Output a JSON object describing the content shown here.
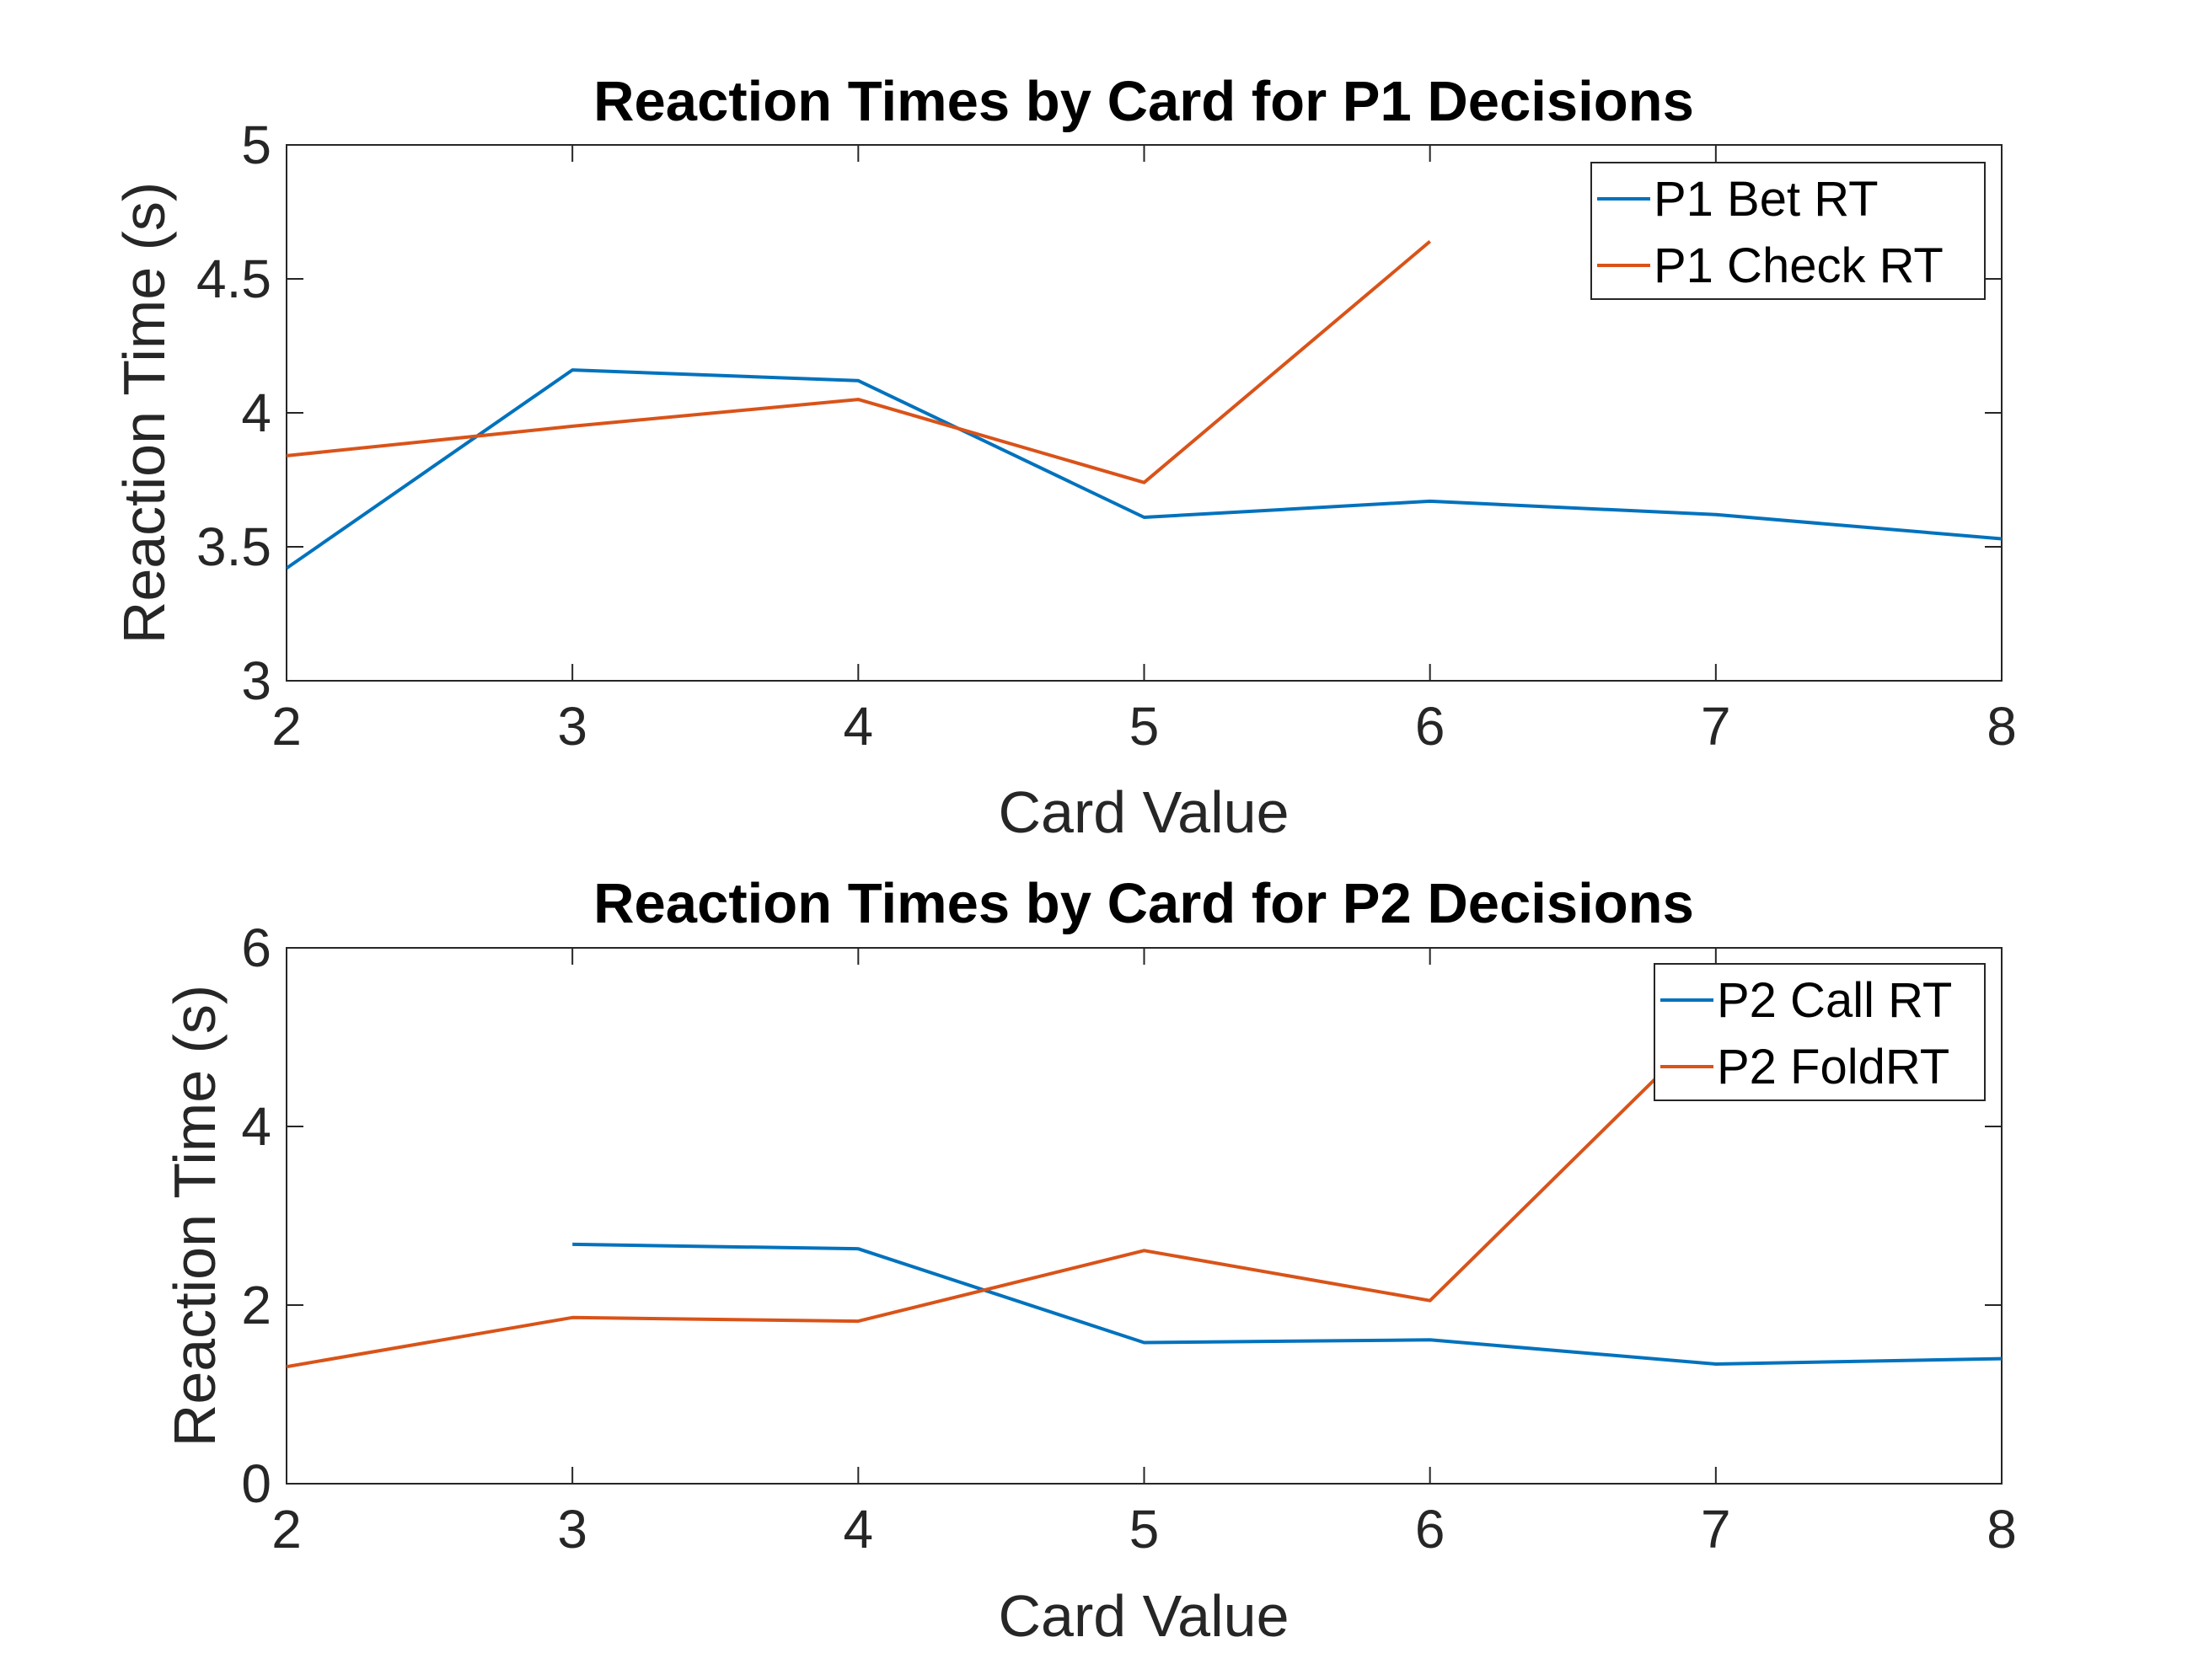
{
  "chart_data": [
    {
      "type": "line",
      "title": "Reaction Times by Card for P1 Decisions",
      "xlabel": "Card Value",
      "ylabel": "Reaction Time (s)",
      "xlim": [
        2,
        8
      ],
      "ylim": [
        3,
        5
      ],
      "xticks": [
        2,
        3,
        4,
        5,
        6,
        7,
        8
      ],
      "yticks": [
        3,
        3.5,
        4,
        4.5,
        5
      ],
      "xtick_labels": [
        "2",
        "3",
        "4",
        "5",
        "6",
        "7",
        "8"
      ],
      "ytick_labels": [
        "3",
        "3.5",
        "4",
        "4.5",
        "5"
      ],
      "grid": false,
      "legend_position": "top-right",
      "series": [
        {
          "name": "P1 Bet RT",
          "color": "#0072BD",
          "x": [
            2,
            3,
            4,
            5,
            6,
            7,
            8
          ],
          "y": [
            3.42,
            4.16,
            4.12,
            3.61,
            3.67,
            3.62,
            3.53
          ]
        },
        {
          "name": "P1 Check RT",
          "color": "#D95319",
          "x": [
            2,
            3,
            4,
            5,
            6
          ],
          "y": [
            3.84,
            3.95,
            4.05,
            3.74,
            4.64
          ]
        }
      ]
    },
    {
      "type": "line",
      "title": "Reaction Times by Card for P2 Decisions",
      "xlabel": "Card Value",
      "ylabel": "Reaction Time (s)",
      "xlim": [
        2,
        8
      ],
      "ylim": [
        0,
        6
      ],
      "xticks": [
        2,
        3,
        4,
        5,
        6,
        7,
        8
      ],
      "yticks": [
        0,
        2,
        4,
        6
      ],
      "xtick_labels": [
        "2",
        "3",
        "4",
        "5",
        "6",
        "7",
        "8"
      ],
      "ytick_labels": [
        "0",
        "2",
        "4",
        "6"
      ],
      "grid": false,
      "legend_position": "top-right",
      "series": [
        {
          "name": "P2 Call RT",
          "color": "#0072BD",
          "x": [
            3,
            4,
            5,
            6,
            7,
            8
          ],
          "y": [
            2.68,
            2.63,
            1.58,
            1.61,
            1.34,
            1.4
          ]
        },
        {
          "name": "P2 FoldRT",
          "color": "#D95319",
          "x": [
            2,
            3,
            4,
            5,
            6,
            7
          ],
          "y": [
            1.31,
            1.86,
            1.82,
            2.61,
            2.05,
            5.2
          ]
        }
      ]
    }
  ]
}
